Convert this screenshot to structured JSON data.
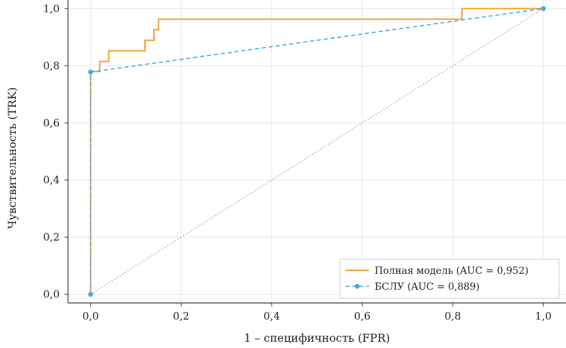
{
  "chart_data": {
    "type": "line",
    "xlabel": "1 – специфичность (FPR)",
    "ylabel": "Чувствительность (TRK)",
    "xlim": [
      -0.05,
      1.05
    ],
    "ylim": [
      -0.03,
      1.03
    ],
    "xticks": [
      0.0,
      0.2,
      0.4,
      0.6,
      0.8,
      1.0
    ],
    "yticks": [
      0.0,
      0.2,
      0.4,
      0.6,
      0.8,
      1.0
    ],
    "xtick_labels": [
      "0,0",
      "0,2",
      "0,4",
      "0,6",
      "0,8",
      "1,0"
    ],
    "ytick_labels": [
      "0,0",
      "0,2",
      "0,4",
      "0,6",
      "0,8",
      "1,0"
    ],
    "grid": true,
    "legend_position": "bottom-right",
    "series": [
      {
        "name": "Полная модель (AUC = 0,952)",
        "color": "#f0a030",
        "style": "solid",
        "markers": false,
        "x": [
          0.0,
          0.0,
          0.0,
          0.0,
          0.02,
          0.02,
          0.02,
          0.04,
          0.04,
          0.04,
          0.12,
          0.12,
          0.14,
          0.14,
          0.15,
          0.15,
          0.82,
          0.82,
          1.0
        ],
        "y": [
          0.0,
          0.7,
          0.7,
          0.78,
          0.78,
          0.815,
          0.815,
          0.815,
          0.852,
          0.852,
          0.852,
          0.889,
          0.889,
          0.926,
          0.926,
          0.963,
          0.963,
          1.0,
          1.0
        ]
      },
      {
        "name": "БСЛУ (AUC = 0,889)",
        "color": "#4aa8dc",
        "style": "dashed",
        "markers": true,
        "x": [
          0.0,
          0.0,
          1.0
        ],
        "y": [
          0.0,
          0.778,
          1.0
        ]
      }
    ],
    "reference_line": {
      "x": [
        0.0,
        1.0
      ],
      "y": [
        0.0,
        1.0
      ],
      "color": "#999999",
      "style": "dotted"
    }
  }
}
